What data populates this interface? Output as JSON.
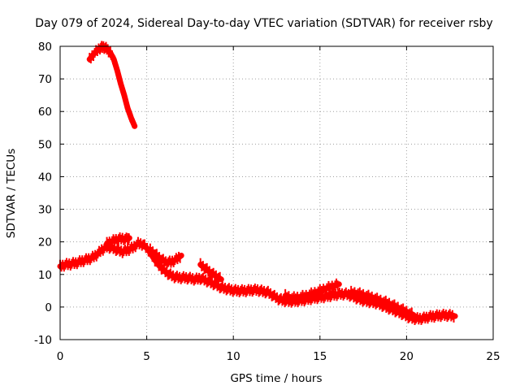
{
  "chart_data": {
    "type": "line",
    "title": "Day 079 of 2024, Sidereal Day-to-day VTEC variation (SDTVAR) for receiver rsby",
    "xlabel": "GPS time / hours",
    "ylabel": "SDTVAR / TECUs",
    "xlim": [
      0,
      25
    ],
    "ylim": [
      -10,
      80
    ],
    "xticks": [
      "0",
      "5",
      "10",
      "15",
      "20",
      "25"
    ],
    "yticks": [
      "-10",
      "0",
      "10",
      "20",
      "30",
      "40",
      "50",
      "60",
      "70",
      "80"
    ],
    "grid": true,
    "series": [
      {
        "name": "segment-high",
        "color": "#ff0000",
        "x": [
          1.7,
          2.0,
          2.3,
          2.5,
          2.7,
          2.9,
          3.1,
          3.3,
          3.5,
          3.7,
          3.9,
          4.1,
          4.3
        ],
        "y": [
          76,
          78,
          79.5,
          79.8,
          79.2,
          78,
          76,
          72.5,
          68.5,
          65,
          61,
          58,
          55.5
        ]
      },
      {
        "name": "segment-main",
        "color": "#ff0000",
        "x": [
          0,
          0.3,
          0.6,
          0.9,
          1.2,
          1.5,
          1.8,
          2.1,
          2.4,
          2.7,
          3.0,
          3.3,
          3.6,
          3.9,
          4.2,
          4.5,
          4.8,
          5.1,
          5.4,
          5.7,
          6.0,
          6.3,
          6.6,
          6.9,
          7.2,
          7.5,
          7.8,
          8.1,
          8.4,
          8.7,
          9.0,
          9.3,
          9.6,
          9.9,
          10.2,
          10.5,
          10.8,
          11.1,
          11.4,
          11.7,
          12.0,
          12.3,
          12.6,
          12.9,
          13.2,
          13.5,
          13.8,
          14.1,
          14.4,
          14.7,
          15.0,
          15.3,
          15.6,
          15.9,
          16.2,
          16.5,
          16.8,
          17.1,
          17.4,
          17.7,
          18.0,
          18.3,
          18.6,
          18.9,
          19.2,
          19.5,
          19.8,
          20.1,
          20.4,
          20.7,
          21.0,
          21.3,
          21.6,
          21.9,
          22.2,
          22.5,
          22.8
        ],
        "y": [
          12.5,
          13,
          13.2,
          13.5,
          14,
          14.5,
          15,
          16,
          17.5,
          18.5,
          18.2,
          17.5,
          17,
          17.5,
          18.2,
          19.5,
          19.2,
          17.5,
          15,
          12.8,
          11.2,
          10,
          9.3,
          9,
          9,
          8.8,
          8.5,
          8.8,
          8.2,
          7.5,
          6.8,
          6,
          5.6,
          5.2,
          5,
          5,
          5,
          5.2,
          5.2,
          4.8,
          4.5,
          3.5,
          2.5,
          2,
          1.8,
          1.8,
          2,
          2.2,
          2.5,
          2.8,
          3,
          3.2,
          3.5,
          3.8,
          4,
          4,
          3.5,
          2.8,
          2.2,
          1.8,
          1.5,
          1.2,
          0.5,
          -0.2,
          -0.8,
          -1.5,
          -2.2,
          -3,
          -3.5,
          -3.6,
          -3.4,
          -3,
          -2.8,
          -2.6,
          -2.5,
          -2.6,
          -2.8
        ]
      },
      {
        "name": "segment-branch-a",
        "color": "#ff0000",
        "x": [
          2.7,
          3.0,
          3.3,
          3.6,
          3.9,
          4.0
        ],
        "y": [
          19.5,
          20.2,
          20.8,
          21,
          20.8,
          21.2
        ]
      },
      {
        "name": "segment-branch-b",
        "color": "#ff0000",
        "x": [
          5.2,
          5.5,
          5.8,
          6.1,
          6.4,
          6.7,
          7.0
        ],
        "y": [
          17.5,
          16.2,
          14.8,
          13.8,
          13.8,
          14.6,
          15.8
        ]
      },
      {
        "name": "segment-branch-c",
        "color": "#ff0000",
        "x": [
          8.1,
          8.4,
          8.7,
          9.0,
          9.3
        ],
        "y": [
          13,
          11.8,
          10.5,
          9.5,
          8.5
        ]
      },
      {
        "name": "segment-branch-d",
        "color": "#ff0000",
        "x": [
          13.0,
          13.4,
          13.8,
          14.2,
          14.6,
          15.0,
          15.4,
          15.8,
          16.1
        ],
        "y": [
          3.5,
          2.8,
          3,
          3.5,
          4.2,
          5,
          5.8,
          6.5,
          7
        ]
      },
      {
        "name": "segment-branch-e",
        "color": "#ff0000",
        "x": [
          16.8,
          17.2,
          17.6,
          18.0,
          18.4,
          18.8,
          19.2,
          19.6,
          20.0,
          20.4
        ],
        "y": [
          4.5,
          4.2,
          3.6,
          3,
          2.2,
          1.5,
          0.6,
          -0.4,
          -1.4,
          -2.4
        ]
      }
    ]
  }
}
